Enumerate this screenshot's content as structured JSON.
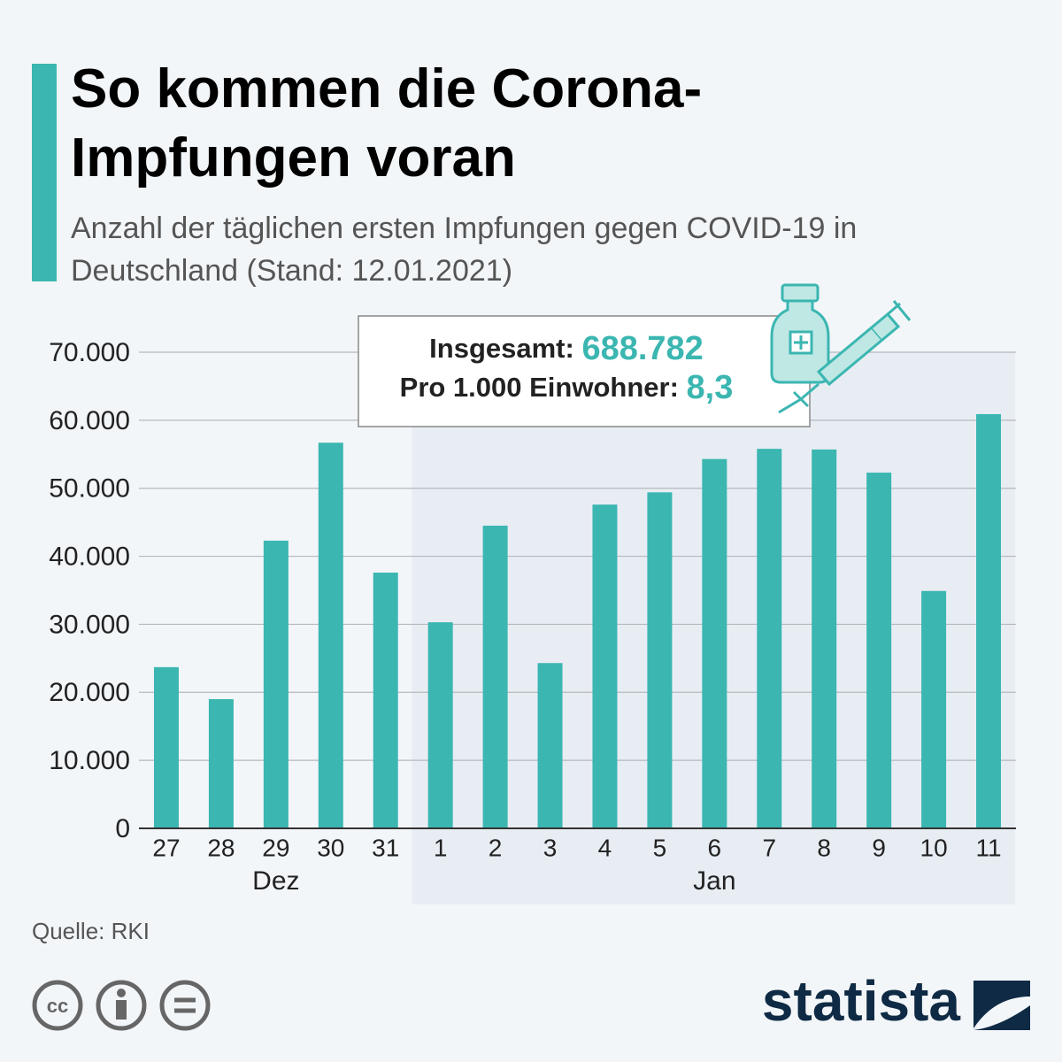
{
  "chart_data": {
    "type": "bar",
    "title": "So kommen die Corona-Impfungen voran",
    "subtitle": "Anzahl der täglichen ersten Impfungen gegen COVID-19 in Deutschland (Stand: 12.01.2021)",
    "categories": [
      "27",
      "28",
      "29",
      "30",
      "31",
      "1",
      "2",
      "3",
      "4",
      "5",
      "6",
      "7",
      "8",
      "9",
      "10",
      "11"
    ],
    "category_groups": [
      {
        "label": "Dez",
        "size": 5
      },
      {
        "label": "Jan",
        "size": 11
      }
    ],
    "values": [
      23700,
      19000,
      42300,
      56700,
      37600,
      30300,
      44500,
      24300,
      47600,
      49400,
      54300,
      55800,
      55700,
      52300,
      34900,
      60900
    ],
    "color": "#3bb6b1",
    "ylim": [
      0,
      70000
    ],
    "yticks": [
      0,
      {
        "value": 10000,
        "label": "10.000"
      },
      {
        "value": 20000,
        "label": "20.000"
      },
      {
        "value": 30000,
        "label": "30.000"
      },
      {
        "value": 40000,
        "label": "40.000"
      },
      {
        "value": 50000,
        "label": "50.000"
      },
      {
        "value": 60000,
        "label": "60.000"
      },
      {
        "value": 70000,
        "label": "70.000"
      }
    ],
    "grid": true,
    "annotation": {
      "total_label": "Insgesamt:",
      "total_value": "688.782",
      "per_label": "Pro 1.000 Einwohner:",
      "per_value": "8,3"
    },
    "source": "Quelle: RKI",
    "brand": "statista"
  }
}
